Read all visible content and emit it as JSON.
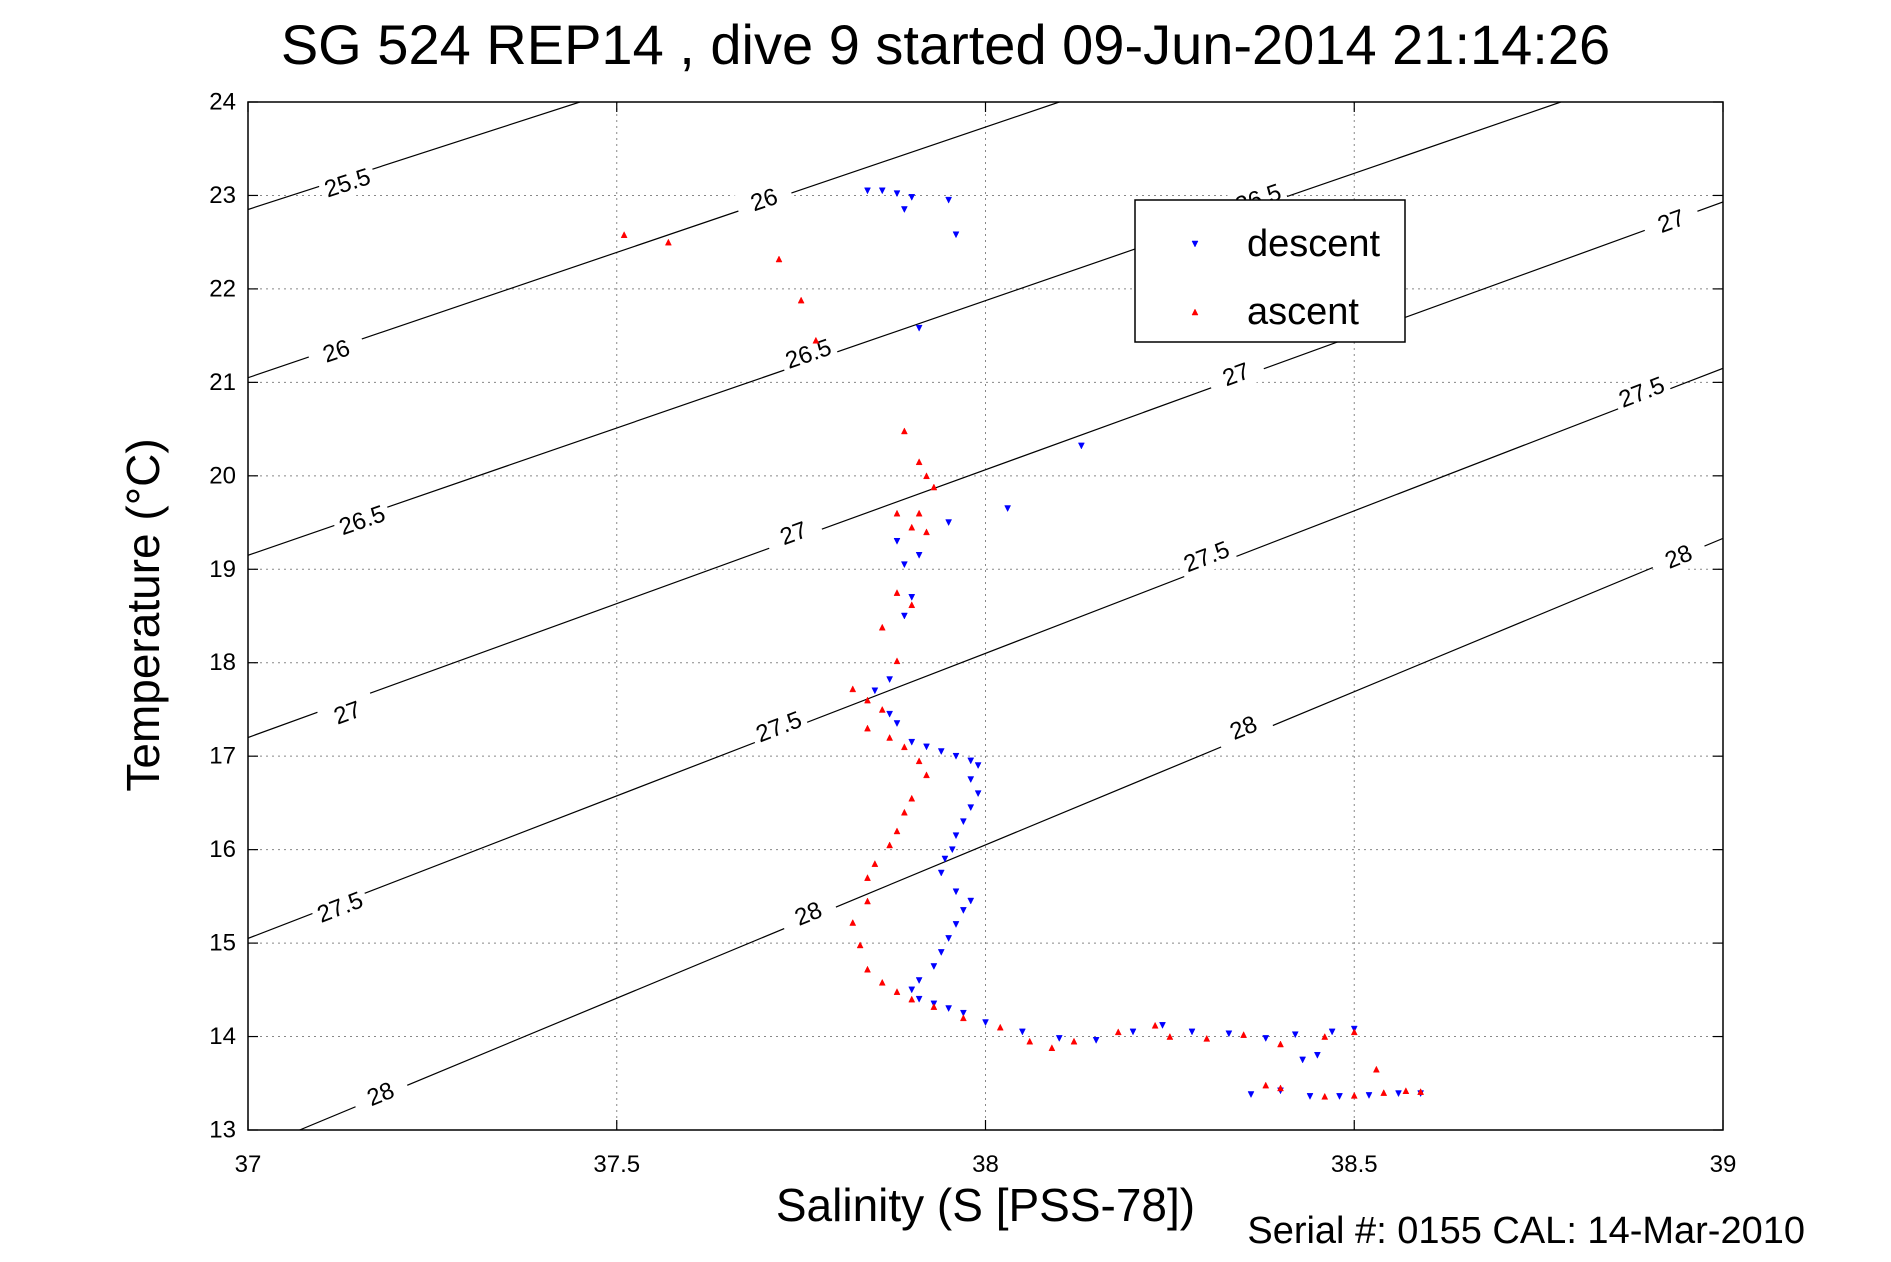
{
  "chart_data": {
    "type": "scatter",
    "title": "SG 524   REP14  , dive 9 started 09-Jun-2014 21:14:26",
    "xlabel": "Salinity (S [PSS-78])",
    "ylabel": "Temperature (°C)",
    "footer": "Serial #: 0155  CAL: 14-Mar-2010",
    "xlim": [
      37,
      39
    ],
    "ylim": [
      13,
      24
    ],
    "xticks": [
      37,
      37.5,
      38,
      38.5,
      39
    ],
    "xtick_labels": [
      "37",
      "37.5",
      "38",
      "38.5",
      "39"
    ],
    "yticks": [
      13,
      14,
      15,
      16,
      17,
      18,
      19,
      20,
      21,
      22,
      23,
      24
    ],
    "ytick_labels": [
      "13",
      "14",
      "15",
      "16",
      "17",
      "18",
      "19",
      "20",
      "21",
      "22",
      "23",
      "24"
    ],
    "grid": true,
    "legend_position": "top-right",
    "density_contours": [
      {
        "label": "25.5",
        "points": [
          [
            37.0,
            22.85
          ],
          [
            37.45,
            24.0
          ]
        ],
        "label_at": [
          37.135,
          23.13
        ]
      },
      {
        "label": "26",
        "points": [
          [
            37.0,
            21.05
          ],
          [
            38.1,
            24.0
          ]
        ],
        "label_at": [
          37.12,
          21.33
        ]
      },
      {
        "label": "26",
        "points": [
          [
            37.0,
            21.05
          ],
          [
            38.1,
            24.0
          ]
        ],
        "label_at": [
          37.7,
          22.95
        ]
      },
      {
        "label": "26.5",
        "points": [
          [
            37.0,
            19.15
          ],
          [
            38.78,
            24.0
          ]
        ],
        "label_at": [
          37.155,
          19.52
        ]
      },
      {
        "label": "26.5",
        "points": [
          [
            37.0,
            19.15
          ],
          [
            38.78,
            24.0
          ]
        ],
        "label_at": [
          37.76,
          21.3
        ]
      },
      {
        "label": "26.5",
        "points": [
          [
            37.0,
            19.15
          ],
          [
            38.78,
            24.0
          ]
        ],
        "label_at": [
          38.37,
          22.96
        ]
      },
      {
        "label": "27",
        "points": [
          [
            37.0,
            17.2
          ],
          [
            39.0,
            22.93
          ]
        ],
        "label_at": [
          37.135,
          17.46
        ]
      },
      {
        "label": "27",
        "points": [
          [
            37.0,
            17.2
          ],
          [
            39.0,
            22.93
          ]
        ],
        "label_at": [
          37.74,
          19.38
        ]
      },
      {
        "label": "27",
        "points": [
          [
            37.0,
            17.2
          ],
          [
            39.0,
            22.93
          ]
        ],
        "label_at": [
          38.34,
          21.08
        ]
      },
      {
        "label": "27",
        "points": [
          [
            37.0,
            17.2
          ],
          [
            39.0,
            22.93
          ]
        ],
        "label_at": [
          38.93,
          22.72
        ]
      },
      {
        "label": "27.5",
        "points": [
          [
            37.0,
            15.05
          ],
          [
            39.0,
            21.15
          ]
        ],
        "label_at": [
          37.125,
          15.38
        ]
      },
      {
        "label": "27.5",
        "points": [
          [
            37.0,
            15.05
          ],
          [
            39.0,
            21.15
          ]
        ],
        "label_at": [
          37.72,
          17.31
        ]
      },
      {
        "label": "27.5",
        "points": [
          [
            37.0,
            15.05
          ],
          [
            39.0,
            21.15
          ]
        ],
        "label_at": [
          38.3,
          19.13
        ]
      },
      {
        "label": "27.5",
        "points": [
          [
            37.0,
            15.05
          ],
          [
            39.0,
            21.15
          ]
        ],
        "label_at": [
          38.89,
          20.89
        ]
      },
      {
        "label": "28",
        "points": [
          [
            37.07,
            13.0
          ],
          [
            39.0,
            19.33
          ]
        ],
        "label_at": [
          37.18,
          13.38
        ]
      },
      {
        "label": "28",
        "points": [
          [
            37.07,
            13.0
          ],
          [
            39.0,
            19.33
          ]
        ],
        "label_at": [
          37.76,
          15.31
        ]
      },
      {
        "label": "28",
        "points": [
          [
            37.07,
            13.0
          ],
          [
            39.0,
            19.33
          ]
        ],
        "label_at": [
          38.35,
          17.3
        ]
      },
      {
        "label": "28",
        "points": [
          [
            37.07,
            13.0
          ],
          [
            39.0,
            19.33
          ]
        ],
        "label_at": [
          38.94,
          19.13
        ]
      }
    ],
    "series": [
      {
        "name": "descent",
        "color": "#0000ff",
        "marker": "triangle-down",
        "points": [
          [
            37.84,
            23.05
          ],
          [
            37.86,
            23.05
          ],
          [
            37.88,
            23.02
          ],
          [
            37.9,
            22.98
          ],
          [
            37.95,
            22.95
          ],
          [
            37.89,
            22.85
          ],
          [
            37.96,
            22.58
          ],
          [
            37.91,
            21.58
          ],
          [
            38.13,
            20.32
          ],
          [
            38.03,
            19.65
          ],
          [
            37.95,
            19.5
          ],
          [
            37.88,
            19.3
          ],
          [
            37.91,
            19.15
          ],
          [
            37.89,
            19.05
          ],
          [
            37.9,
            18.7
          ],
          [
            37.89,
            18.5
          ],
          [
            37.87,
            17.82
          ],
          [
            37.85,
            17.7
          ],
          [
            37.87,
            17.45
          ],
          [
            37.88,
            17.35
          ],
          [
            37.9,
            17.15
          ],
          [
            37.92,
            17.1
          ],
          [
            37.94,
            17.05
          ],
          [
            37.96,
            17.0
          ],
          [
            37.98,
            16.95
          ],
          [
            37.99,
            16.9
          ],
          [
            37.98,
            16.75
          ],
          [
            37.99,
            16.6
          ],
          [
            37.98,
            16.45
          ],
          [
            37.97,
            16.3
          ],
          [
            37.96,
            16.15
          ],
          [
            37.955,
            16.0
          ],
          [
            37.945,
            15.9
          ],
          [
            37.94,
            15.75
          ],
          [
            37.96,
            15.55
          ],
          [
            37.98,
            15.45
          ],
          [
            37.97,
            15.35
          ],
          [
            37.96,
            15.2
          ],
          [
            37.95,
            15.05
          ],
          [
            37.94,
            14.9
          ],
          [
            37.93,
            14.75
          ],
          [
            37.91,
            14.6
          ],
          [
            37.9,
            14.5
          ],
          [
            37.91,
            14.4
          ],
          [
            37.93,
            14.35
          ],
          [
            37.95,
            14.3
          ],
          [
            37.97,
            14.25
          ],
          [
            38.0,
            14.15
          ],
          [
            38.05,
            14.05
          ],
          [
            38.1,
            13.98
          ],
          [
            38.15,
            13.96
          ],
          [
            38.2,
            14.05
          ],
          [
            38.24,
            14.12
          ],
          [
            38.28,
            14.05
          ],
          [
            38.33,
            14.03
          ],
          [
            38.38,
            13.98
          ],
          [
            38.42,
            14.02
          ],
          [
            38.47,
            14.05
          ],
          [
            38.5,
            14.08
          ],
          [
            38.43,
            13.75
          ],
          [
            38.45,
            13.8
          ],
          [
            38.36,
            13.38
          ],
          [
            38.4,
            13.42
          ],
          [
            38.44,
            13.36
          ],
          [
            38.48,
            13.36
          ],
          [
            38.52,
            13.37
          ],
          [
            38.56,
            13.39
          ],
          [
            38.59,
            13.39
          ]
        ]
      },
      {
        "name": "ascent",
        "color": "#ff0000",
        "marker": "triangle-up",
        "points": [
          [
            37.51,
            22.58
          ],
          [
            37.57,
            22.5
          ],
          [
            37.72,
            22.32
          ],
          [
            37.75,
            21.88
          ],
          [
            37.77,
            21.45
          ],
          [
            37.89,
            20.48
          ],
          [
            37.91,
            20.15
          ],
          [
            37.92,
            20.0
          ],
          [
            37.93,
            19.88
          ],
          [
            37.88,
            19.6
          ],
          [
            37.91,
            19.6
          ],
          [
            37.9,
            19.45
          ],
          [
            37.92,
            19.4
          ],
          [
            37.88,
            18.75
          ],
          [
            37.9,
            18.62
          ],
          [
            37.86,
            18.38
          ],
          [
            37.88,
            18.02
          ],
          [
            37.82,
            17.72
          ],
          [
            37.84,
            17.6
          ],
          [
            37.86,
            17.5
          ],
          [
            37.84,
            17.3
          ],
          [
            37.87,
            17.2
          ],
          [
            37.89,
            17.1
          ],
          [
            37.91,
            16.95
          ],
          [
            37.92,
            16.8
          ],
          [
            37.9,
            16.55
          ],
          [
            37.89,
            16.4
          ],
          [
            37.88,
            16.2
          ],
          [
            37.87,
            16.05
          ],
          [
            37.85,
            15.85
          ],
          [
            37.84,
            15.7
          ],
          [
            37.84,
            15.45
          ],
          [
            37.82,
            15.22
          ],
          [
            37.83,
            14.98
          ],
          [
            37.84,
            14.72
          ],
          [
            37.86,
            14.58
          ],
          [
            37.88,
            14.48
          ],
          [
            37.9,
            14.4
          ],
          [
            37.93,
            14.32
          ],
          [
            37.97,
            14.2
          ],
          [
            38.02,
            14.1
          ],
          [
            38.06,
            13.95
          ],
          [
            38.09,
            13.88
          ],
          [
            38.12,
            13.95
          ],
          [
            38.18,
            14.05
          ],
          [
            38.23,
            14.12
          ],
          [
            38.25,
            14.0
          ],
          [
            38.3,
            13.98
          ],
          [
            38.35,
            14.02
          ],
          [
            38.4,
            13.92
          ],
          [
            38.46,
            14.0
          ],
          [
            38.5,
            14.05
          ],
          [
            38.53,
            13.65
          ],
          [
            38.38,
            13.48
          ],
          [
            38.4,
            13.45
          ],
          [
            38.46,
            13.36
          ],
          [
            38.5,
            13.37
          ],
          [
            38.54,
            13.4
          ],
          [
            38.57,
            13.42
          ],
          [
            38.59,
            13.41
          ]
        ]
      }
    ]
  }
}
